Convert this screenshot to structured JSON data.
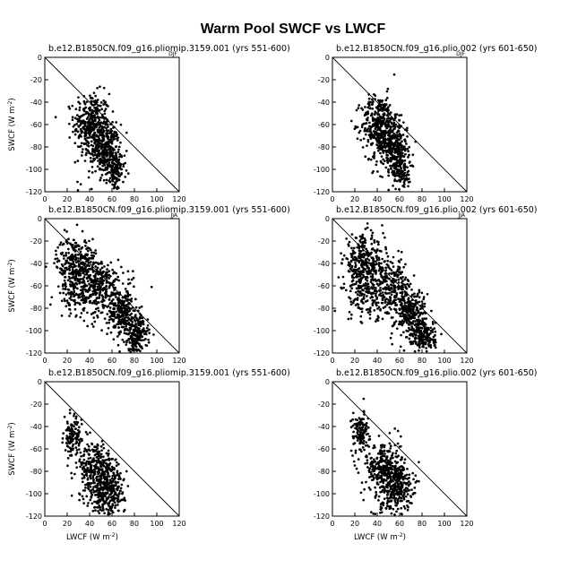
{
  "figure": {
    "title": "Warm Pool SWCF vs LWCF"
  },
  "chart_data": [
    {
      "type": "scatter",
      "subtitle": "b.e12.B1850CN.f09_g16.pliomip.3159.001 (yrs 551-600)",
      "corner": "DJF",
      "xlabel": "",
      "ylabel": "SWCF (W m-2)",
      "xlim": [
        0,
        120
      ],
      "ylim": [
        -120,
        0
      ],
      "xticks": [
        0,
        20,
        40,
        60,
        80,
        100,
        120
      ],
      "yticks": [
        0,
        -20,
        -40,
        -60,
        -80,
        -100,
        -120
      ],
      "reference_line": "y = -x",
      "series": [
        {
          "marker": "dot",
          "clusters": [
            {
              "x": 42,
              "y": -60,
              "sx": 8,
              "sy": 14,
              "n": 360
            },
            {
              "x": 55,
              "y": -82,
              "sx": 6,
              "sy": 11,
              "n": 260
            },
            {
              "x": 63,
              "y": -102,
              "sx": 4,
              "sy": 9,
              "n": 120
            },
            {
              "x": 48,
              "y": -88,
              "sx": 9,
              "sy": 12,
              "n": 40
            }
          ]
        }
      ]
    },
    {
      "type": "scatter",
      "subtitle": "b.e12.B1850CN.f09_g16.plio.002 (yrs 601-650)",
      "corner": "DJF",
      "xlabel": "",
      "ylabel": "",
      "xlim": [
        0,
        120
      ],
      "ylim": [
        -120,
        0
      ],
      "xticks": [
        0,
        20,
        40,
        60,
        80,
        100,
        120
      ],
      "yticks": [
        0,
        -20,
        -40,
        -60,
        -80,
        -100,
        -120
      ],
      "reference_line": "y = -x",
      "series": [
        {
          "marker": "dot",
          "clusters": [
            {
              "x": 42,
              "y": -60,
              "sx": 8,
              "sy": 13,
              "n": 360
            },
            {
              "x": 55,
              "y": -80,
              "sx": 6,
              "sy": 11,
              "n": 260
            },
            {
              "x": 62,
              "y": -100,
              "sx": 4,
              "sy": 10,
              "n": 130
            },
            {
              "x": 46,
              "y": -86,
              "sx": 9,
              "sy": 12,
              "n": 40
            }
          ]
        }
      ]
    },
    {
      "type": "scatter",
      "subtitle": "b.e12.B1850CN.f09_g16.pliomip.3159.001 (yrs 551-600)",
      "corner": "JJA",
      "xlabel": "",
      "ylabel": "SWCF (W m-2)",
      "xlim": [
        0,
        120
      ],
      "ylim": [
        -120,
        0
      ],
      "xticks": [
        0,
        20,
        40,
        60,
        80,
        100,
        120
      ],
      "yticks": [
        0,
        -20,
        -40,
        -60,
        -80,
        -100,
        -120
      ],
      "reference_line": "y = -x",
      "series": [
        {
          "marker": "dot",
          "clusters": [
            {
              "x": 28,
              "y": -40,
              "sx": 9,
              "sy": 12,
              "n": 300
            },
            {
              "x": 50,
              "y": -62,
              "sx": 10,
              "sy": 13,
              "n": 300
            },
            {
              "x": 70,
              "y": -85,
              "sx": 7,
              "sy": 11,
              "n": 260
            },
            {
              "x": 82,
              "y": -105,
              "sx": 5,
              "sy": 8,
              "n": 180
            },
            {
              "x": 25,
              "y": -68,
              "sx": 9,
              "sy": 10,
              "n": 90
            }
          ]
        }
      ]
    },
    {
      "type": "scatter",
      "subtitle": "b.e12.B1850CN.f09_g16.plio.002 (yrs 601-650)",
      "corner": "JJA",
      "xlabel": "",
      "ylabel": "",
      "xlim": [
        0,
        120
      ],
      "ylim": [
        -120,
        0
      ],
      "xticks": [
        0,
        20,
        40,
        60,
        80,
        100,
        120
      ],
      "yticks": [
        0,
        -20,
        -40,
        -60,
        -80,
        -100,
        -120
      ],
      "reference_line": "y = -x",
      "series": [
        {
          "marker": "dot",
          "clusters": [
            {
              "x": 28,
              "y": -40,
              "sx": 9,
              "sy": 12,
              "n": 300
            },
            {
              "x": 50,
              "y": -62,
              "sx": 10,
              "sy": 13,
              "n": 300
            },
            {
              "x": 70,
              "y": -85,
              "sx": 7,
              "sy": 11,
              "n": 260
            },
            {
              "x": 82,
              "y": -106,
              "sx": 5,
              "sy": 8,
              "n": 180
            },
            {
              "x": 26,
              "y": -70,
              "sx": 9,
              "sy": 10,
              "n": 90
            }
          ]
        }
      ]
    },
    {
      "type": "scatter",
      "subtitle": "b.e12.B1850CN.f09_g16.pliomip.3159.001 (yrs 551-600)",
      "corner": "",
      "xlabel": "LWCF (W m-2)",
      "ylabel": "SWCF (W m-2)",
      "xlim": [
        0,
        120
      ],
      "ylim": [
        -120,
        0
      ],
      "xticks": [
        0,
        20,
        40,
        60,
        80,
        100,
        120
      ],
      "yticks": [
        0,
        -20,
        -40,
        -60,
        -80,
        -100,
        -120
      ],
      "reference_line": "y = -x",
      "series": [
        {
          "marker": "dot",
          "clusters": [
            {
              "x": 25,
              "y": -50,
              "sx": 4,
              "sy": 9,
              "n": 120
            },
            {
              "x": 45,
              "y": -78,
              "sx": 8,
              "sy": 12,
              "n": 280
            },
            {
              "x": 58,
              "y": -95,
              "sx": 7,
              "sy": 10,
              "n": 260
            },
            {
              "x": 52,
              "y": -108,
              "sx": 8,
              "sy": 8,
              "n": 60
            }
          ]
        }
      ]
    },
    {
      "type": "scatter",
      "subtitle": "b.e12.B1850CN.f09_g16.plio.002 (yrs 601-650)",
      "corner": "",
      "xlabel": "LWCF (W m-2)",
      "ylabel": "",
      "xlim": [
        0,
        120
      ],
      "ylim": [
        -120,
        0
      ],
      "xticks": [
        0,
        20,
        40,
        60,
        80,
        100,
        120
      ],
      "yticks": [
        0,
        -20,
        -40,
        -60,
        -80,
        -100,
        -120
      ],
      "reference_line": "y = -x",
      "series": [
        {
          "marker": "dot",
          "clusters": [
            {
              "x": 25,
              "y": -45,
              "sx": 4,
              "sy": 9,
              "n": 120
            },
            {
              "x": 45,
              "y": -75,
              "sx": 8,
              "sy": 12,
              "n": 260
            },
            {
              "x": 58,
              "y": -92,
              "sx": 7,
              "sy": 11,
              "n": 260
            },
            {
              "x": 50,
              "y": -106,
              "sx": 8,
              "sy": 9,
              "n": 80
            }
          ]
        }
      ]
    }
  ]
}
